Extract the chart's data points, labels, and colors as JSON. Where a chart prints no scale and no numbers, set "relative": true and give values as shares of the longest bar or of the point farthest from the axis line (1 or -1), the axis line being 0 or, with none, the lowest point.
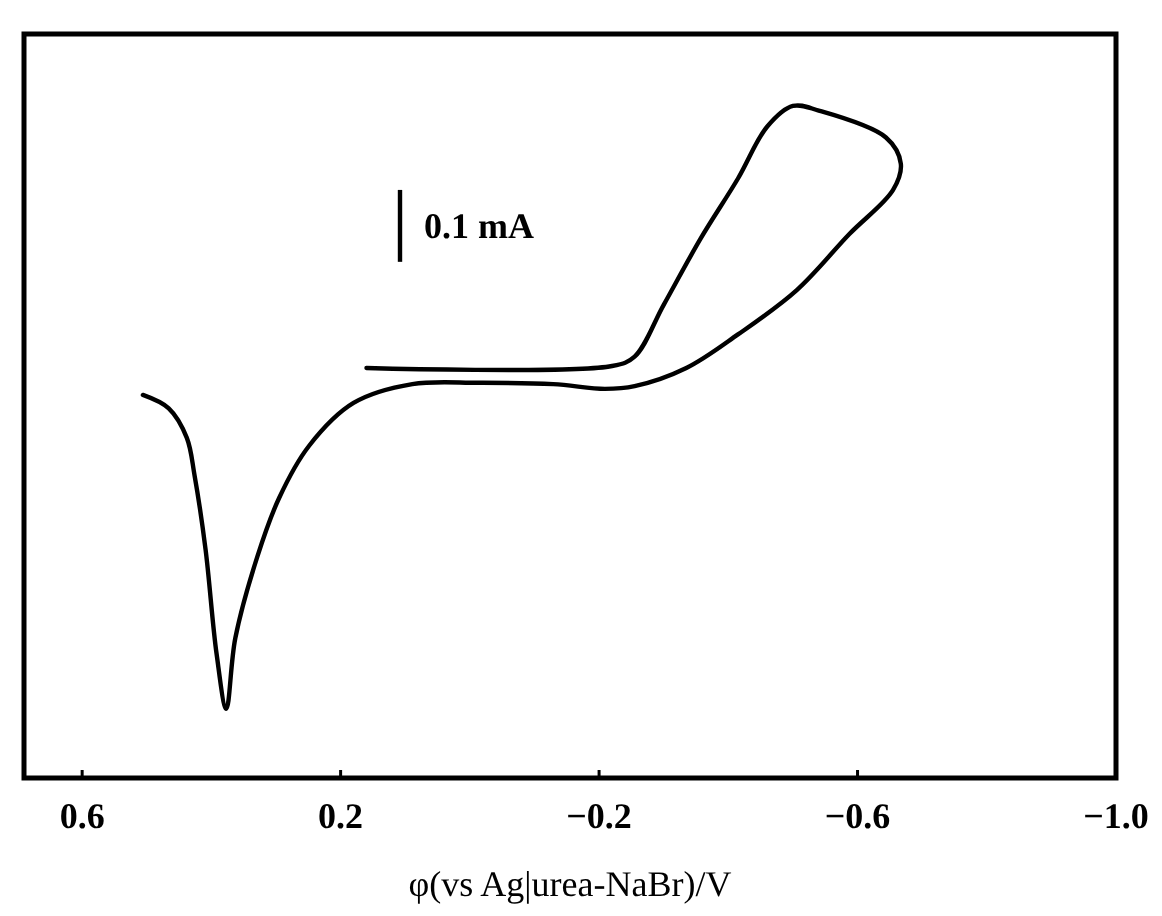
{
  "chart_data": {
    "type": "line",
    "relative": true,
    "xlabel": "φ(vs Ag|urea-NaBr)/V",
    "xlim": [
      0.69,
      -1.0
    ],
    "xticks": [
      0.6,
      0.2,
      {
        "value": -0.2,
        "label": "−0.2"
      },
      {
        "value": -0.6,
        "label": "−0.6"
      },
      {
        "value": -1.0,
        "label": "−1.0"
      }
    ],
    "tick_labels": "x",
    "marker": "none",
    "line_style": "solid",
    "annotations": [
      "0.1 mA"
    ],
    "series": [
      {
        "color": "#000000",
        "x": [
          0.16,
          -0.22,
          -0.255,
          -0.3,
          -0.358,
          -0.415,
          -0.46,
          -0.5,
          -0.54,
          -0.644,
          -0.667,
          -0.655,
          -0.587,
          -0.506,
          -0.415,
          -0.335,
          -0.255,
          -0.209,
          -0.129,
          -0.014,
          0.089,
          0.18,
          0.249,
          0.295,
          0.329,
          0.363,
          0.377,
          0.392,
          0.409,
          0.426,
          0.438,
          0.466,
          0.506
        ],
        "values": [
          0.61,
          0.613,
          0.627,
          0.704,
          0.804,
          0.892,
          0.969,
          1.0,
          0.993,
          0.953,
          0.914,
          0.875,
          0.809,
          0.726,
          0.66,
          0.61,
          0.583,
          0.579,
          0.586,
          0.588,
          0.586,
          0.558,
          0.494,
          0.417,
          0.329,
          0.208,
          0.103,
          0.185,
          0.34,
          0.45,
          0.506,
          0.55,
          0.57
        ]
      }
    ]
  }
}
